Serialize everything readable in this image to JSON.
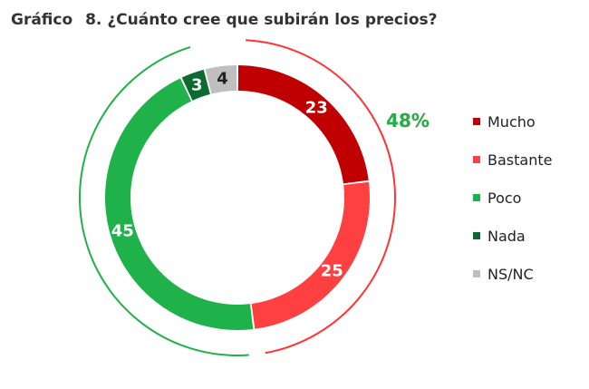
{
  "title": {
    "label": "Gráfico",
    "number": "8.",
    "text": "¿Cuánto cree que subirán los precios?"
  },
  "chart_data": {
    "type": "pie",
    "variant": "donut",
    "title": "¿Cuánto cree que subirán los precios?",
    "categories": [
      "Mucho",
      "Bastante",
      "Poco",
      "Nada",
      "NS/NC"
    ],
    "values": [
      23,
      25,
      45,
      3,
      4
    ],
    "data_labels": [
      "23",
      "25",
      "45",
      "3",
      "4"
    ],
    "colors": [
      "#C00000",
      "#FF4040",
      "#1FB14A",
      "#0B6B2E",
      "#BFBFBF"
    ],
    "label_colors": [
      "#ffffff",
      "#ffffff",
      "#ffffff",
      "#ffffff",
      "#222222"
    ],
    "group_annotations": [
      {
        "text": "48%",
        "members": [
          "Mucho",
          "Bastante"
        ],
        "color": "#FF3333"
      },
      {
        "text": "48%",
        "members": [
          "Poco",
          "Nada"
        ],
        "color": "#1FB14A"
      }
    ],
    "legend_position": "right"
  }
}
